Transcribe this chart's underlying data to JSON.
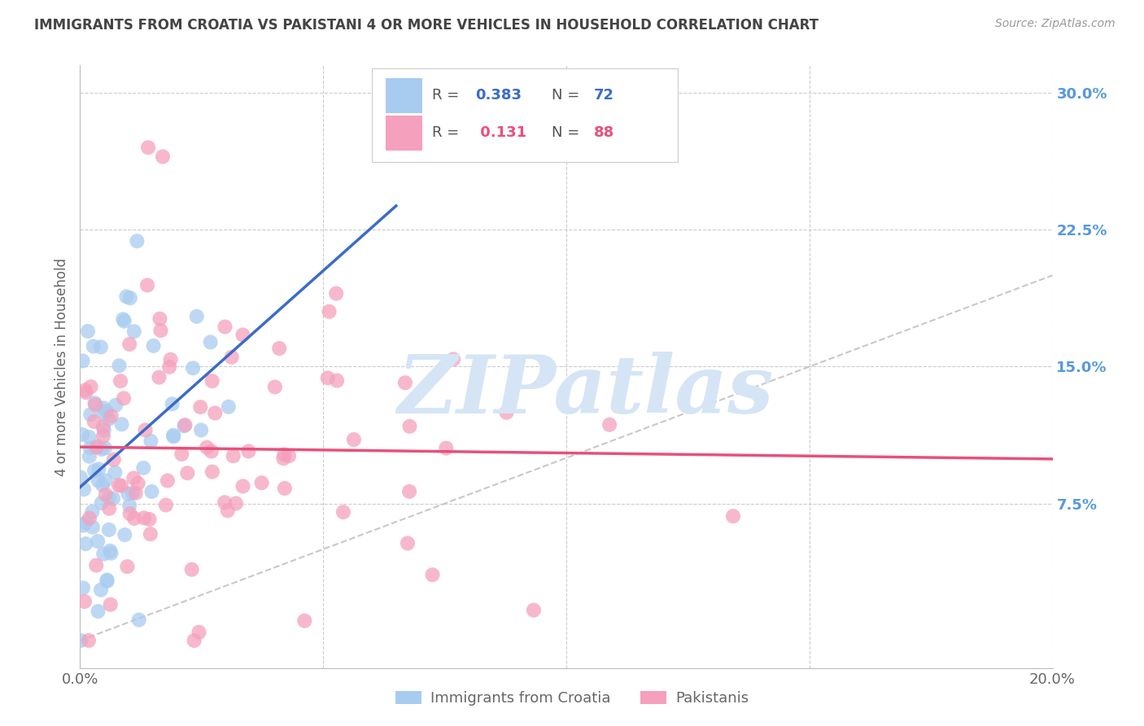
{
  "title": "IMMIGRANTS FROM CROATIA VS PAKISTANI 4 OR MORE VEHICLES IN HOUSEHOLD CORRELATION CHART",
  "source": "Source: ZipAtlas.com",
  "ylabel": "4 or more Vehicles in Household",
  "xmin": 0.0,
  "xmax": 0.2,
  "ymin": -0.015,
  "ymax": 0.315,
  "yticks": [
    0.0,
    0.075,
    0.15,
    0.225,
    0.3
  ],
  "xticks": [
    0.0,
    0.05,
    0.1,
    0.15,
    0.2
  ],
  "xtick_labels": [
    "0.0%",
    "",
    "",
    "",
    "20.0%"
  ],
  "right_ytick_labels": [
    "",
    "7.5%",
    "15.0%",
    "22.5%",
    "30.0%"
  ],
  "blue_color": "#A8CCF0",
  "pink_color": "#F5A0BC",
  "blue_line_color": "#3A6CC8",
  "pink_line_color": "#E8507A",
  "watermark": "ZIPatlas",
  "watermark_color": "#D5E5F5",
  "background_color": "#FFFFFF",
  "grid_color": "#CCCCCC",
  "title_color": "#444444",
  "right_axis_color": "#5599DD",
  "legend_label_blue": "Immigrants from Croatia",
  "legend_label_pink": "Pakistanis"
}
